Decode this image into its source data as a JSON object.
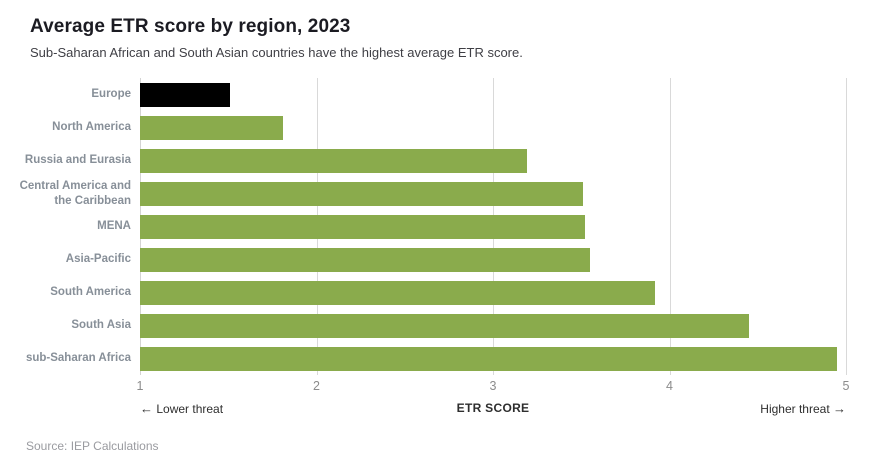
{
  "header": {
    "title": "Average ETR score by region, 2023",
    "subtitle": "Sub-Saharan African and South Asian countries have the highest average ETR score."
  },
  "chart_data": {
    "type": "bar",
    "orientation": "horizontal",
    "title": "Average ETR score by region, 2023",
    "subtitle": "Sub-Saharan African and South Asian countries have the highest average ETR score.",
    "categories": [
      "Europe",
      "North America",
      "Russia and Eurasia",
      "Central America and the Caribbean",
      "MENA",
      "Asia-Pacific",
      "South America",
      "South Asia",
      "sub-Saharan Africa"
    ],
    "values": [
      1.51,
      1.81,
      3.19,
      3.51,
      3.52,
      3.55,
      3.92,
      4.45,
      4.95
    ],
    "bar_colors": [
      "#000000",
      "#8aab4c",
      "#8aab4c",
      "#8aab4c",
      "#8aab4c",
      "#8aab4c",
      "#8aab4c",
      "#8aab4c",
      "#8aab4c"
    ],
    "xlim": [
      1,
      5
    ],
    "x_ticks": [
      "1",
      "2",
      "3",
      "4",
      "5"
    ],
    "xlabel": "ETR SCORE",
    "grid": "vertical-on",
    "legend": "none",
    "annotations": {
      "left_arrow": "←",
      "left_text": "Lower threat",
      "right_text": "Higher threat",
      "right_arrow": "→"
    }
  },
  "colors": {
    "bar_green": "#8aab4c",
    "bar_highlight_black": "#000000",
    "gridline": "#d9d9d9",
    "title_text": "#1b1b22",
    "category_label_text": "#878f98",
    "tick_text": "#8c8c8c",
    "source_text": "#9a9ba0"
  },
  "footer": {
    "source": "Source: IEP Calculations"
  }
}
